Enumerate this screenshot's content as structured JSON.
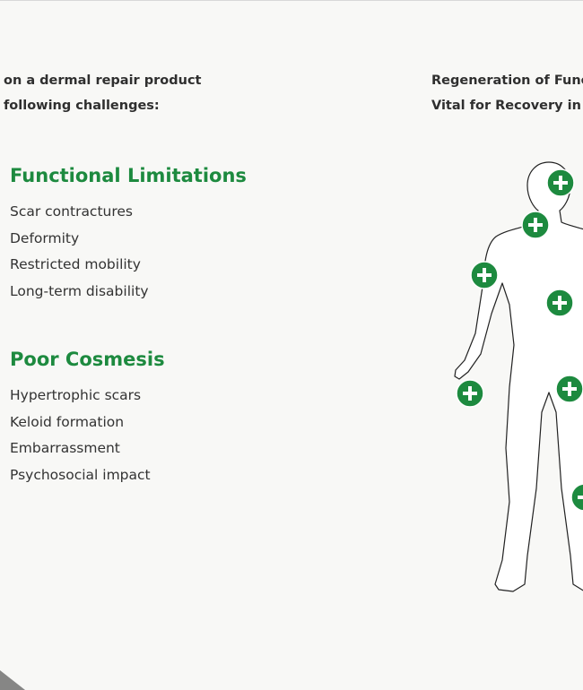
{
  "intro": {
    "lines": [
      "on a dermal repair product",
      "following challenges:"
    ]
  },
  "figure_heading": {
    "lines": [
      "Regeneration of Functi",
      "Vital for Recovery in Bu"
    ]
  },
  "sections": [
    {
      "title": "Functional Limitations",
      "items": [
        "Scar contractures",
        "Deformity",
        "Restricted mobility",
        "Long-term disability"
      ]
    },
    {
      "title": "Poor Cosmesis",
      "items": [
        "Hypertrophic scars",
        "Keloid formation",
        "Embarrassment",
        "Psychosocial impact"
      ]
    }
  ]
}
